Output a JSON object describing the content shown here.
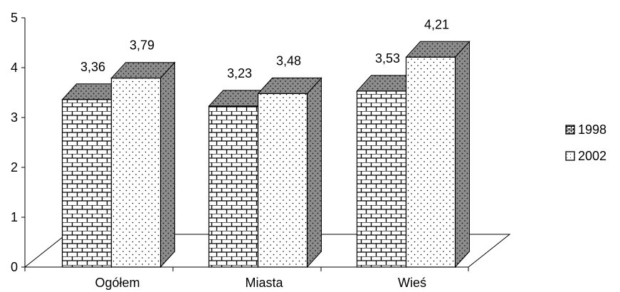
{
  "chart_data": {
    "type": "bar",
    "categories": [
      "Ogółem",
      "Miasta",
      "Wieś"
    ],
    "series": [
      {
        "name": "1998",
        "values": [
          3.36,
          3.23,
          3.53
        ],
        "labels": [
          "3,36",
          "3,23",
          "3,53"
        ],
        "pattern": "brick"
      },
      {
        "name": "2002",
        "values": [
          3.79,
          3.48,
          4.21
        ],
        "labels": [
          "3,79",
          "3,48",
          "4,21"
        ],
        "pattern": "dots"
      }
    ],
    "ylim": [
      0,
      5
    ],
    "yticks": [
      "0",
      "1",
      "2",
      "3",
      "4",
      "5"
    ],
    "legend_position": "right",
    "three_d": true
  }
}
